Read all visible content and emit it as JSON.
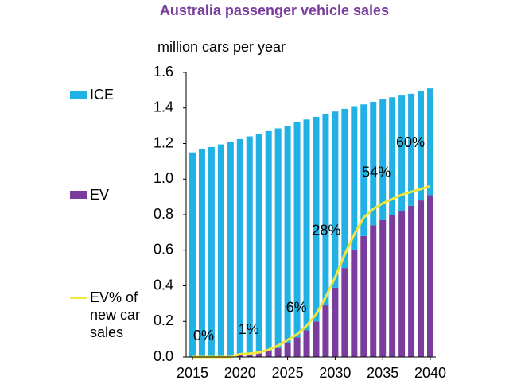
{
  "chart_data": {
    "type": "bar",
    "title": "Australia passenger vehicle sales",
    "y_label": "million cars per year",
    "x": [
      2015,
      2016,
      2017,
      2018,
      2019,
      2020,
      2021,
      2022,
      2023,
      2024,
      2025,
      2026,
      2027,
      2028,
      2029,
      2030,
      2031,
      2032,
      2033,
      2034,
      2035,
      2036,
      2037,
      2038,
      2039,
      2040
    ],
    "stacked": true,
    "series": [
      {
        "name": "EV",
        "color": "#7a3d9e",
        "values": [
          0,
          0,
          0,
          0,
          0,
          0.01,
          0.015,
          0.02,
          0.035,
          0.05,
          0.08,
          0.11,
          0.15,
          0.2,
          0.29,
          0.39,
          0.5,
          0.6,
          0.68,
          0.74,
          0.77,
          0.8,
          0.82,
          0.85,
          0.88,
          0.91
        ]
      },
      {
        "name": "ICE",
        "color": "#21b1e4",
        "values": [
          1.15,
          1.17,
          1.18,
          1.195,
          1.21,
          1.215,
          1.225,
          1.235,
          1.235,
          1.235,
          1.22,
          1.21,
          1.185,
          1.15,
          1.075,
          0.99,
          0.895,
          0.81,
          0.74,
          0.695,
          0.68,
          0.66,
          0.65,
          0.63,
          0.615,
          0.6
        ]
      },
      {
        "name": "EV% of new car sales",
        "type": "line",
        "axis": "y2",
        "color": "#f2e63c",
        "values": [
          0,
          0,
          0,
          0,
          0,
          1,
          1.2,
          1.6,
          2.5,
          4,
          6,
          8,
          11,
          15,
          21,
          28,
          36,
          43,
          49,
          52,
          54,
          55.5,
          57,
          58,
          59,
          60
        ],
        "value_labels": [
          "0%",
          null,
          null,
          null,
          null,
          "1%",
          null,
          null,
          null,
          null,
          "6%",
          null,
          null,
          null,
          null,
          "28%",
          null,
          null,
          null,
          null,
          "54%",
          null,
          null,
          null,
          null,
          "60%"
        ]
      }
    ],
    "ylim": [
      0,
      1.6
    ],
    "yticks": [
      {
        "value": 0,
        "label": "0.0"
      },
      {
        "value": 0.2,
        "label": "0.2"
      },
      {
        "value": 0.4,
        "label": "0.4"
      },
      {
        "value": 0.6,
        "label": "0.6"
      },
      {
        "value": 0.8,
        "label": "0.8"
      },
      {
        "value": 1,
        "label": "1.0"
      },
      {
        "value": 1.2,
        "label": "1.2"
      },
      {
        "value": 1.4,
        "label": "1.4"
      },
      {
        "value": 1.6,
        "label": "1.6"
      }
    ],
    "y2lim": [
      0,
      100
    ],
    "xlim": [
      2015,
      2040
    ],
    "xticks": [
      2015,
      2020,
      2025,
      2030,
      2035,
      2040
    ]
  }
}
